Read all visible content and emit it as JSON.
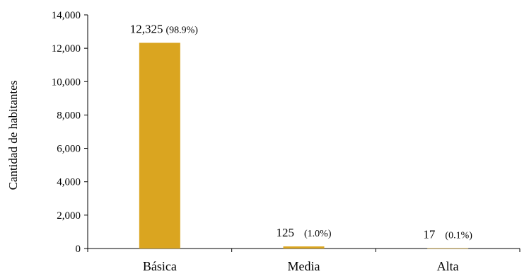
{
  "chart_data": {
    "type": "bar",
    "title": "",
    "xlabel": "",
    "ylabel": "Cantidad de habitantes",
    "ylim": [
      0,
      14000
    ],
    "yticks": [
      0,
      2000,
      4000,
      6000,
      8000,
      10000,
      12000,
      14000
    ],
    "ytick_labels": [
      "0",
      "2,000",
      "4,000",
      "6,000",
      "8,000",
      "10,000",
      "12,000",
      "14,000"
    ],
    "categories": [
      "Básica",
      "Media",
      "Alta"
    ],
    "values": [
      12325,
      125,
      17
    ],
    "value_labels": [
      "12,325",
      "125",
      "17"
    ],
    "percent_labels": [
      "(98.9%)",
      "(1.0%)",
      "(0.1%)"
    ],
    "bar_color": "#DAA520",
    "grid": false,
    "legend": "none"
  }
}
